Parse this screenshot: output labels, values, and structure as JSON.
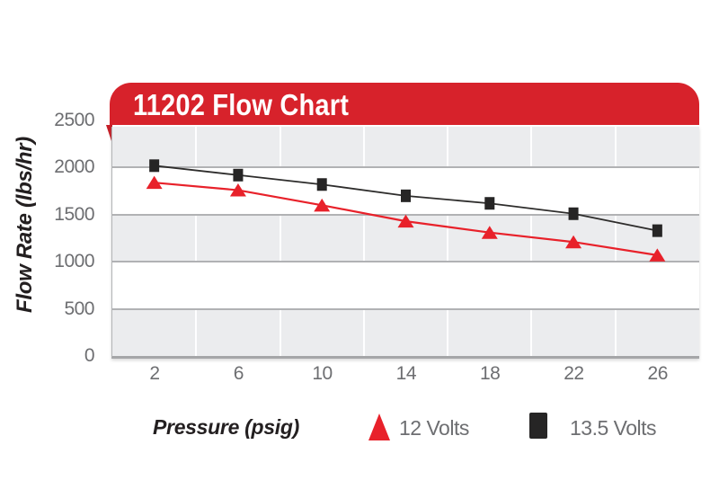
{
  "chart_data": {
    "type": "line",
    "title": "11202 Flow Chart",
    "xlabel": "Pressure (psig)",
    "ylabel": "Flow Rate (lbs/hr)",
    "categories": [
      "2",
      "6",
      "10",
      "14",
      "18",
      "22",
      "26"
    ],
    "series": [
      {
        "name": "12 Volts",
        "marker": "triangle",
        "color": "#e8212a",
        "values": [
          1840,
          1760,
          1600,
          1430,
          1310,
          1210,
          1070
        ]
      },
      {
        "name": "13.5 Volts",
        "marker": "square",
        "color": "#262525",
        "values": [
          2020,
          1920,
          1820,
          1700,
          1620,
          1510,
          1330
        ]
      }
    ],
    "ylim": [
      0,
      2500
    ],
    "yticks": [
      "2500",
      "2000",
      "1500",
      "1000",
      "500",
      "0"
    ],
    "grid": {
      "horizontal_bands": true,
      "band_step": 500,
      "vertical_lines": "category-boundaries"
    },
    "legend_position": "bottom"
  },
  "style": {
    "banner_red": "#d7222b",
    "fold_red": "#c51e27",
    "band_gray": "#ebecee",
    "hgrid_color": "#b1b2b4",
    "axis_color": "#a5a6a8",
    "tick_text_color": "#6d6e71",
    "title_text_color": "#ffffff",
    "axis_title_color": "#231f20",
    "series_red": "#e8212a",
    "series_black": "#2e2d2c"
  }
}
